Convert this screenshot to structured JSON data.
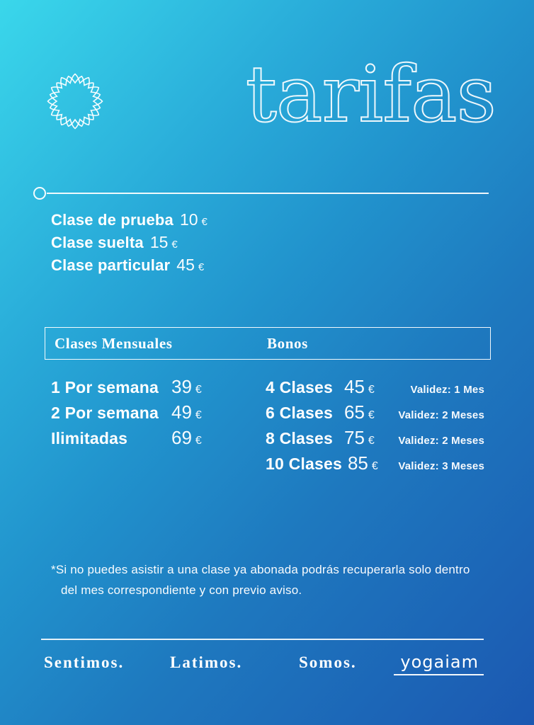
{
  "page": {
    "title": "tarifas"
  },
  "intro_prices": [
    {
      "label": "Clase de prueba",
      "price": "10",
      "currency": "€"
    },
    {
      "label": "Clase suelta",
      "price": "15",
      "currency": "€"
    },
    {
      "label": "Clase particular",
      "price": "45",
      "currency": "€"
    }
  ],
  "table": {
    "headers": [
      "Clases Mensuales",
      "Bonos"
    ],
    "mensuales": [
      {
        "label": "1 Por semana",
        "price": "39",
        "currency": "€"
      },
      {
        "label": "2 Por semana",
        "price": "49",
        "currency": "€"
      },
      {
        "label": "Ilimitadas",
        "price": "69",
        "currency": "€"
      }
    ],
    "bonos": [
      {
        "label": "4 Clases",
        "price": "45",
        "currency": "€",
        "validity": "Validez: 1 Mes"
      },
      {
        "label": "6 Clases",
        "price": "65",
        "currency": "€",
        "validity": "Validez: 2 Meses"
      },
      {
        "label": "8 Clases",
        "price": "75",
        "currency": "€",
        "validity": "Validez: 2 Meses"
      },
      {
        "label": "10 Clases",
        "price": "85",
        "currency": "€",
        "validity": "Validez: 3 Meses"
      }
    ]
  },
  "footnote": "*Si no puedes asistir a una clase ya abonada podrás recuperarla solo dentro del mes correspondiente y con previo aviso.",
  "footer": {
    "words": [
      "Sentimos.",
      "Latimos.",
      "Somos."
    ],
    "logo_text": "yogaiam"
  },
  "colors": {
    "gradient_start": "#3ad7eb",
    "gradient_mid": "#2193cd",
    "gradient_end": "#1b58b1",
    "text": "#ffffff"
  }
}
